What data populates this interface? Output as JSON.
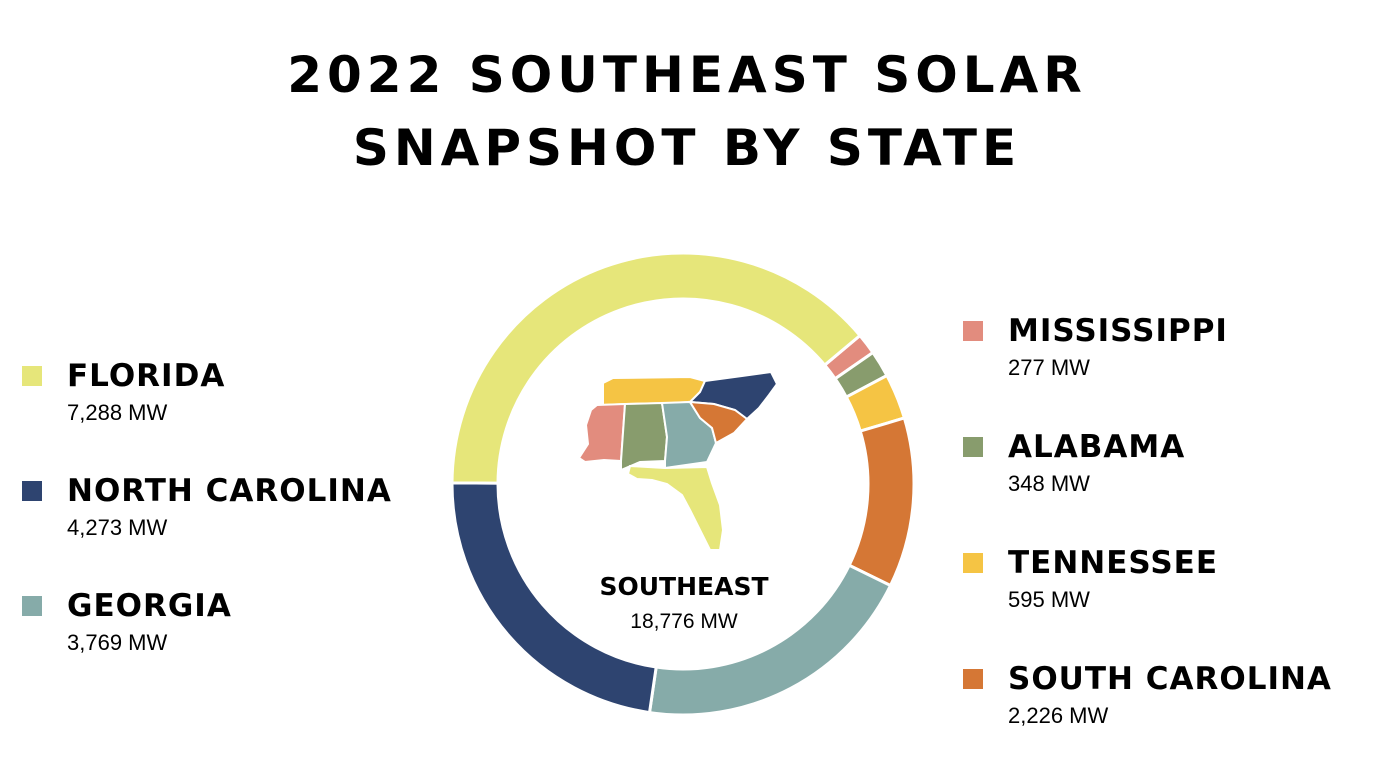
{
  "title_line1": "2022 SOUTHEAST SOLAR",
  "title_line2": "SNAPSHOT BY STATE",
  "center": {
    "name": "SOUTHEAST",
    "value": "18,776 MW"
  },
  "legend_left": [
    {
      "name": "FLORIDA",
      "value": "7,288 MW",
      "color": "#E6E67A"
    },
    {
      "name": "NORTH CAROLINA",
      "value": "4,273 MW",
      "color": "#2E4470"
    },
    {
      "name": "GEORGIA",
      "value": "3,769 MW",
      "color": "#86ABA9"
    }
  ],
  "legend_right": [
    {
      "name": "MISSISSIPPI",
      "value": "277 MW",
      "color": "#E28C7E"
    },
    {
      "name": "ALABAMA",
      "value": "348 MW",
      "color": "#889C6D"
    },
    {
      "name": "TENNESSEE",
      "value": "595 MW",
      "color": "#F5C444"
    },
    {
      "name": "SOUTH CAROLINA",
      "value": "2,226 MW",
      "color": "#D57735"
    }
  ],
  "chart_data": {
    "type": "pie",
    "categories": [
      "Mississippi",
      "Alabama",
      "Tennessee",
      "South Carolina",
      "Georgia",
      "North Carolina",
      "Florida"
    ],
    "values": [
      277,
      348,
      595,
      2226,
      3769,
      4273,
      7288
    ],
    "units": "MW",
    "colors": [
      "#E28C7E",
      "#889C6D",
      "#F5C444",
      "#D57735",
      "#86ABA9",
      "#2E4470",
      "#E6E67A"
    ],
    "total": 18776,
    "donut": true,
    "title": "2022 SOUTHEAST SOLAR SNAPSHOT BY STATE",
    "legend_placement": "left and right"
  },
  "map_icon": "southeast-states-map-icon"
}
